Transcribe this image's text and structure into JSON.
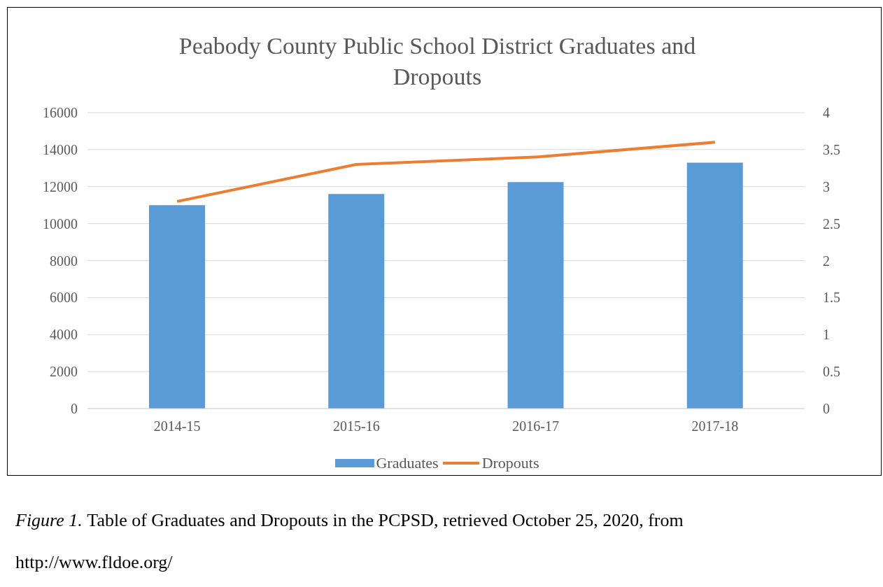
{
  "chart_data": {
    "type": "bar",
    "title": "Peabody County Public School District Graduates and Dropouts",
    "categories": [
      "2014-15",
      "2015-16",
      "2016-17",
      "2017-18"
    ],
    "series": [
      {
        "name": "Graduates",
        "color": "#5b9bd5",
        "values": [
          11000,
          11600,
          12250,
          13300
        ]
      },
      {
        "name": "Dropouts",
        "type": "line",
        "axis": "y2",
        "color": "#ed7d31",
        "values": [
          2.8,
          3.3,
          3.4,
          3.6
        ]
      }
    ],
    "ylim": [
      0,
      16000
    ],
    "yticks": [
      0,
      2000,
      4000,
      6000,
      8000,
      10000,
      12000,
      14000,
      16000
    ],
    "y2lim": [
      0,
      4
    ],
    "y2ticks": [
      0,
      0.5,
      1,
      1.5,
      2,
      2.5,
      3,
      3.5,
      4
    ],
    "grid": "y",
    "legend": "bottom",
    "marker": "none",
    "annotations": [
      "Figure 1.",
      "Table of Graduates and Dropouts in the PCPSD, retrieved October 25, 2020, from",
      "http://www.fldoe.org/"
    ]
  }
}
